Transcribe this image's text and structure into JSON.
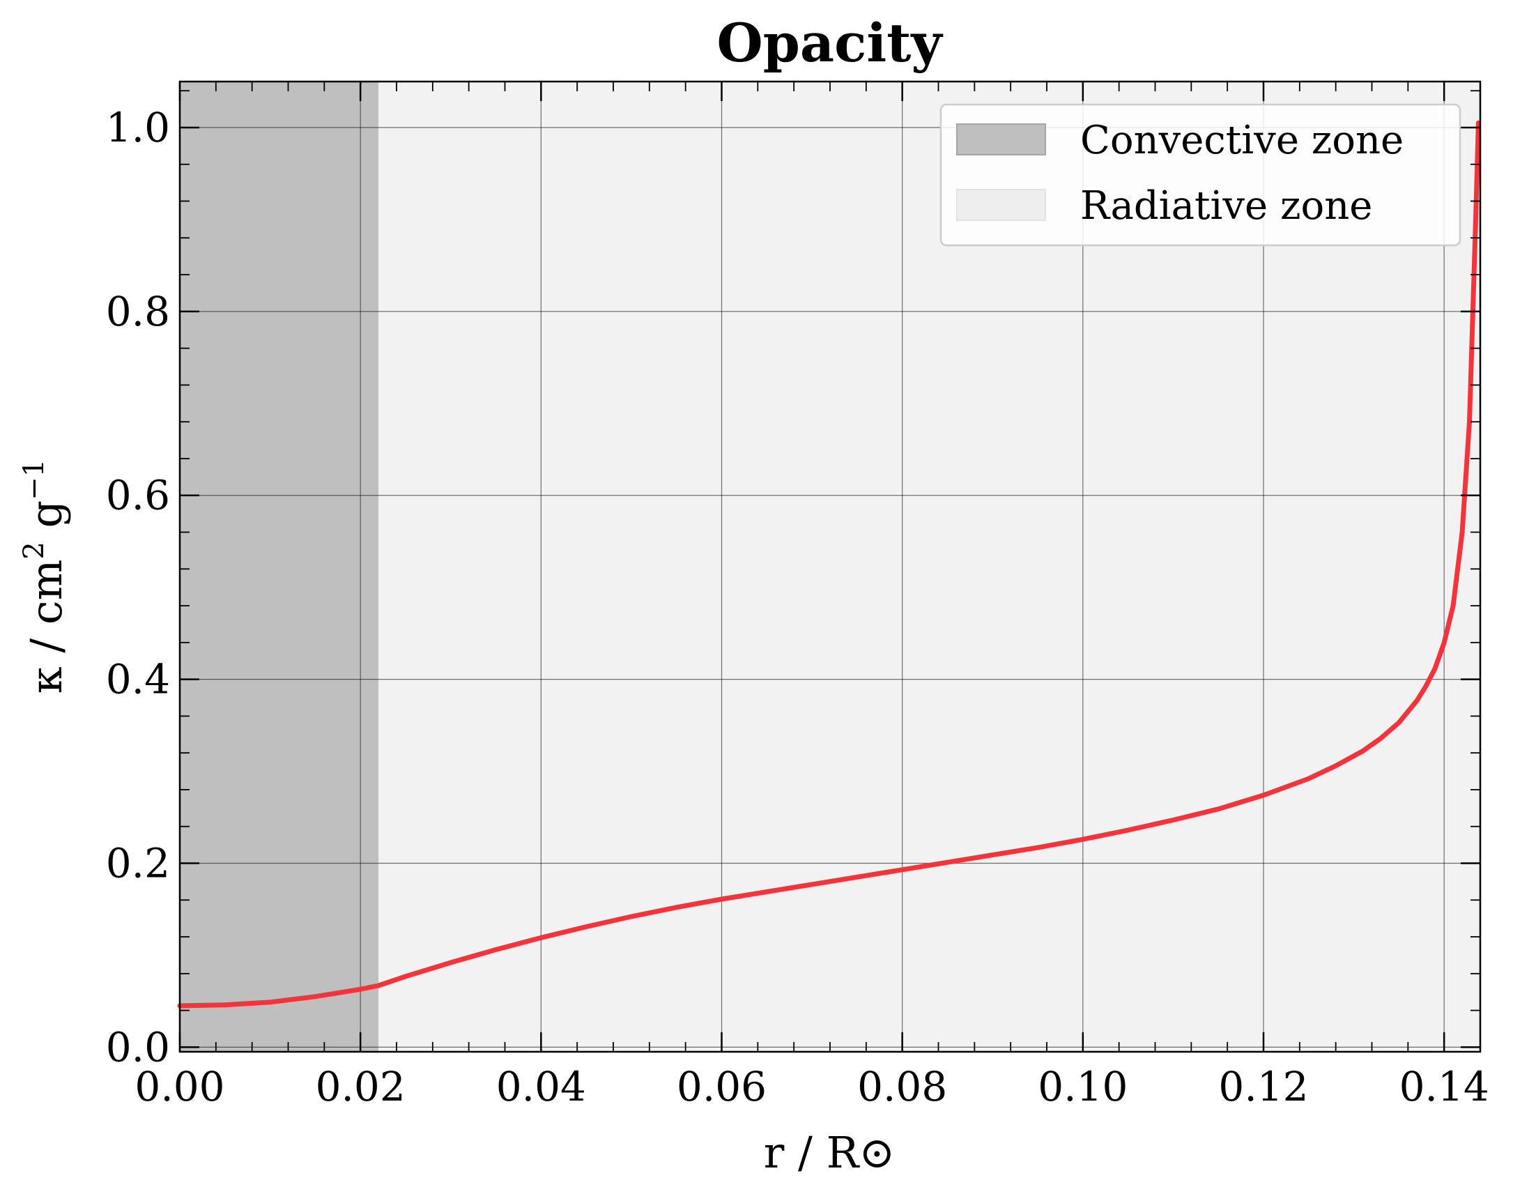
{
  "chart_data": {
    "type": "line",
    "title": "Opacity",
    "xlabel": "r / R⊙",
    "ylabel": {
      "base": "κ / cm",
      "sup1": "2",
      "mid": " g",
      "sup2": "−1"
    },
    "xlim": [
      0.0,
      0.144
    ],
    "ylim": [
      -0.005,
      1.05
    ],
    "xticks": [
      {
        "value": 0.0,
        "label": "0.00"
      },
      {
        "value": 0.02,
        "label": "0.02"
      },
      {
        "value": 0.04,
        "label": "0.04"
      },
      {
        "value": 0.06,
        "label": "0.06"
      },
      {
        "value": 0.08,
        "label": "0.08"
      },
      {
        "value": 0.1,
        "label": "0.10"
      },
      {
        "value": 0.12,
        "label": "0.12"
      },
      {
        "value": 0.14,
        "label": "0.14"
      }
    ],
    "yticks": [
      {
        "value": 0.0,
        "label": "0.0"
      },
      {
        "value": 0.2,
        "label": "0.2"
      },
      {
        "value": 0.4,
        "label": "0.4"
      },
      {
        "value": 0.6,
        "label": "0.6"
      },
      {
        "value": 0.8,
        "label": "0.8"
      },
      {
        "value": 1.0,
        "label": "1.0"
      }
    ],
    "grid": true,
    "legend_position": "upper right",
    "regions": [
      {
        "name": "Convective zone",
        "x_start": 0.0,
        "x_end": 0.022,
        "color": "#bfbfbf"
      },
      {
        "name": "Radiative zone",
        "x_start": 0.022,
        "x_end": 0.144,
        "color": "#f2f2f2"
      }
    ],
    "series": [
      {
        "color": "#f5333a",
        "x": [
          0.0,
          0.005,
          0.01,
          0.015,
          0.02,
          0.022,
          0.025,
          0.03,
          0.035,
          0.04,
          0.045,
          0.05,
          0.055,
          0.06,
          0.065,
          0.07,
          0.075,
          0.08,
          0.085,
          0.09,
          0.095,
          0.1,
          0.105,
          0.11,
          0.115,
          0.12,
          0.125,
          0.128,
          0.131,
          0.133,
          0.135,
          0.137,
          0.138,
          0.139,
          0.14,
          0.141,
          0.142,
          0.1428,
          0.1435,
          0.1438
        ],
        "y": [
          0.045,
          0.046,
          0.049,
          0.055,
          0.063,
          0.067,
          0.077,
          0.092,
          0.106,
          0.119,
          0.131,
          0.142,
          0.152,
          0.161,
          0.169,
          0.177,
          0.185,
          0.193,
          0.201,
          0.209,
          0.217,
          0.226,
          0.236,
          0.247,
          0.259,
          0.274,
          0.292,
          0.306,
          0.322,
          0.336,
          0.353,
          0.377,
          0.393,
          0.412,
          0.44,
          0.48,
          0.56,
          0.68,
          0.9,
          1.005
        ]
      }
    ]
  }
}
